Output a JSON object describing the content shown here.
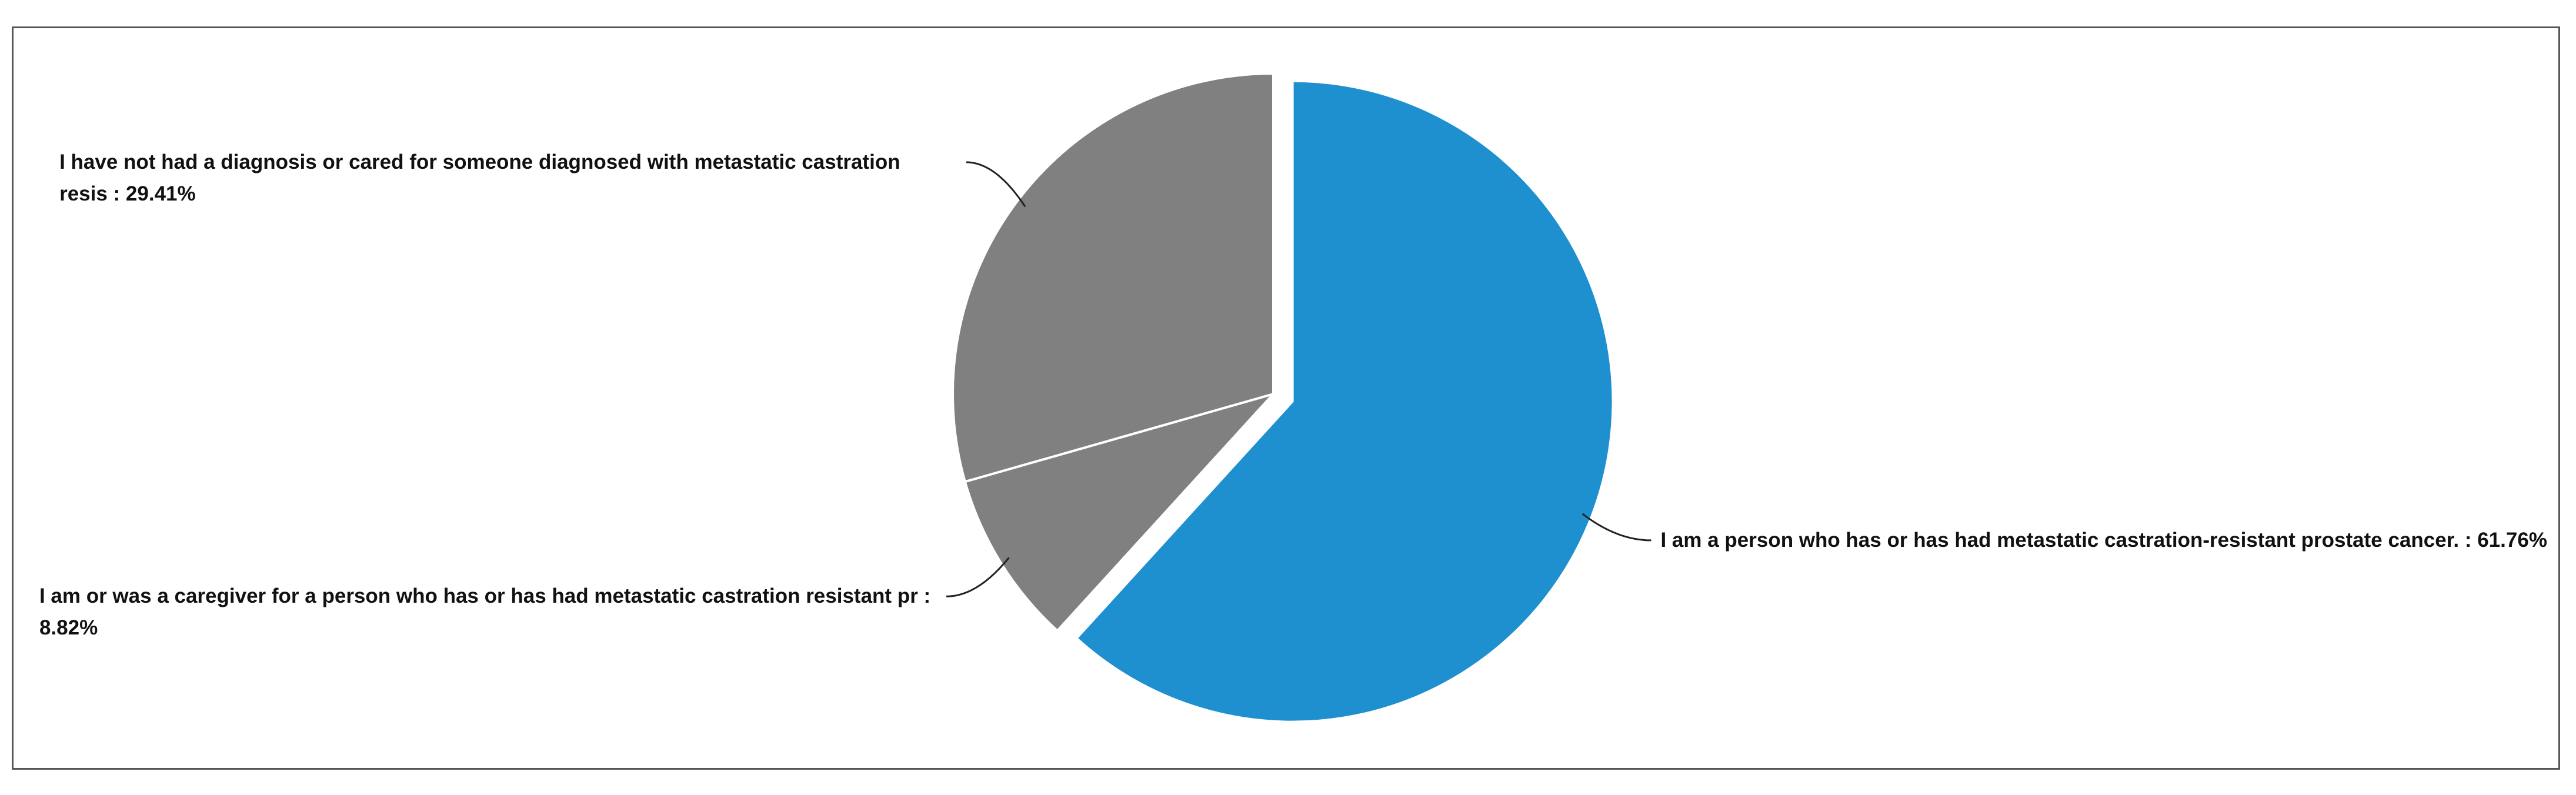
{
  "chart_data": {
    "type": "pie",
    "value_labels": [
      "I am a person who has or has had metastatic castration-resistant prostate cancer. : 61.76%",
      "I am or was a caregiver for a person who has or has had metastatic castration resistant pr : 8.82%",
      "I have not had a diagnosis or cared for someone diagnosed with metastatic castration resis : 29.41%"
    ],
    "values": [
      61.76,
      8.82,
      29.41
    ],
    "colors": [
      "#1e8fcf",
      "#7f807f",
      "#7f807f"
    ]
  }
}
